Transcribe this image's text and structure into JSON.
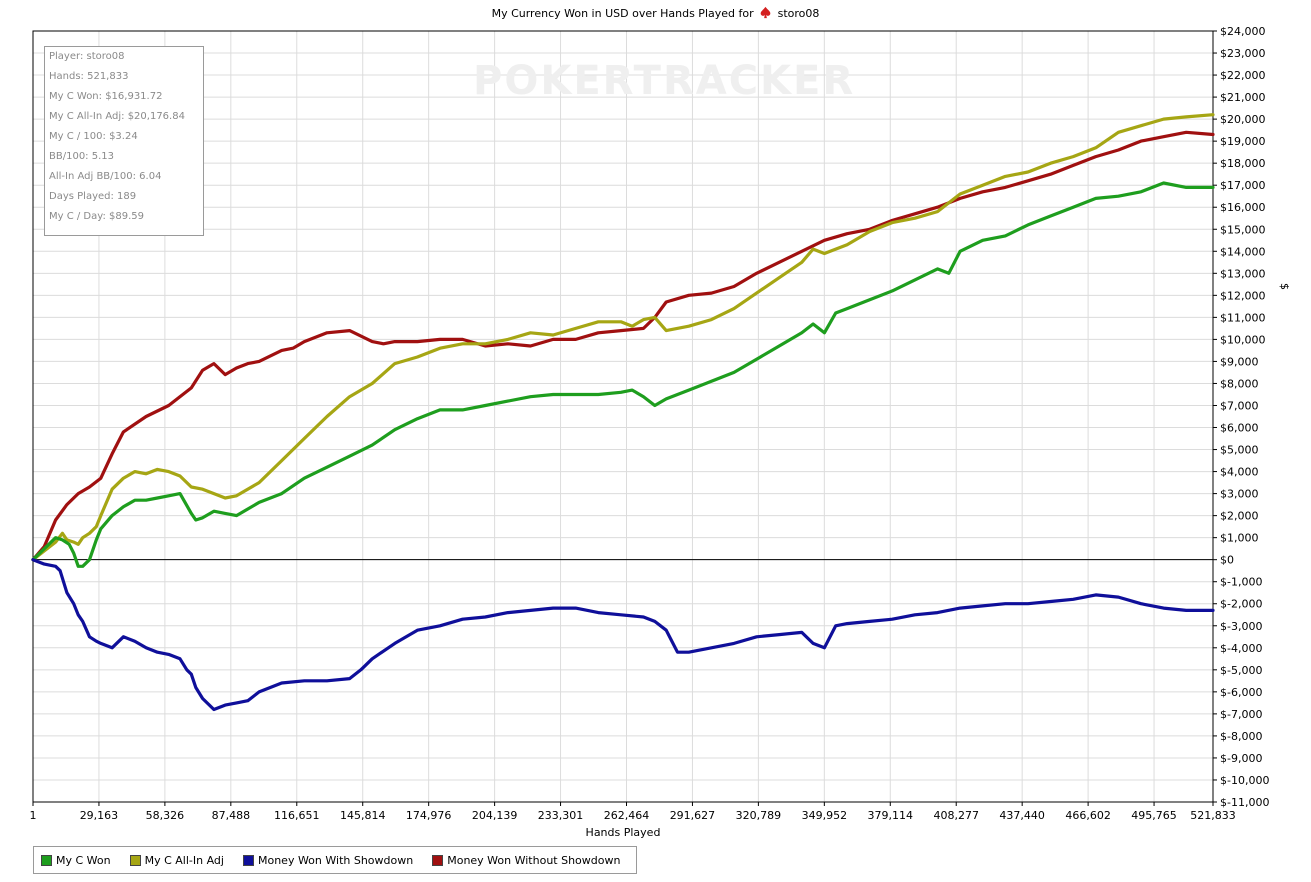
{
  "title_prefix": "My Currency Won in USD over Hands Played for",
  "title_player": "storo08",
  "watermark_left": "POKER",
  "watermark_right": "TRACKER",
  "stats": [
    "Player: storo08",
    "Hands: 521,833",
    "My C Won: $16,931.72",
    "My C All-In Adj: $20,176.84",
    "My C / 100: $3.24",
    "BB/100: 5.13",
    "All-In Adj BB/100: 6.04",
    "Days Played: 189",
    "My C / Day: $89.59"
  ],
  "legend": [
    {
      "label": "My C Won",
      "color": "#1e9e1e"
    },
    {
      "label": "My C All-In Adj",
      "color": "#a6a614"
    },
    {
      "label": "Money Won With Showdown",
      "color": "#0f0f9a"
    },
    {
      "label": "Money Won Without Showdown",
      "color": "#a01010"
    }
  ],
  "chart_data": {
    "type": "line",
    "title": "My Currency Won in USD over Hands Played for storo08",
    "xlabel": "Hands Played",
    "ylabel": "$",
    "xlim": [
      1,
      521833
    ],
    "ylim": [
      -11000,
      24000
    ],
    "x_ticks": [
      1,
      29163,
      58326,
      87488,
      116651,
      145814,
      174976,
      204139,
      233301,
      262464,
      291627,
      320789,
      349952,
      379114,
      408277,
      437440,
      466602,
      495765,
      521833
    ],
    "x_tick_labels": [
      "1",
      "29,163",
      "58,326",
      "87,488",
      "116,651",
      "145,814",
      "174,976",
      "204,139",
      "233,301",
      "262,464",
      "291,627",
      "320,789",
      "349,952",
      "379,114",
      "408,277",
      "437,440",
      "466,602",
      "495,765",
      "521,833"
    ],
    "y_ticks": [
      24000,
      23000,
      22000,
      21000,
      20000,
      19000,
      18000,
      17000,
      16000,
      15000,
      14000,
      13000,
      12000,
      11000,
      10000,
      9000,
      8000,
      7000,
      6000,
      5000,
      4000,
      3000,
      2000,
      1000,
      0,
      -1000,
      -2000,
      -3000,
      -4000,
      -5000,
      -6000,
      -7000,
      -8000,
      -9000,
      -10000,
      -11000
    ],
    "y_tick_labels": [
      "$24,000",
      "$23,000",
      "$22,000",
      "$21,000",
      "$20,000",
      "$19,000",
      "$18,000",
      "$17,000",
      "$16,000",
      "$15,000",
      "$14,000",
      "$13,000",
      "$12,000",
      "$11,000",
      "$10,000",
      "$9,000",
      "$8,000",
      "$7,000",
      "$6,000",
      "$5,000",
      "$4,000",
      "$3,000",
      "$2,000",
      "$1,000",
      "$0",
      "$-1,000",
      "$-2,000",
      "$-3,000",
      "$-4,000",
      "$-5,000",
      "$-6,000",
      "$-7,000",
      "$-8,000",
      "$-9,000",
      "$-10,000",
      "$-11,000"
    ],
    "grid": true,
    "legend_position": "bottom-left",
    "series": [
      {
        "name": "Money Won Without Showdown",
        "color": "#a01010",
        "x": [
          1,
          5000,
          10000,
          15000,
          20000,
          25000,
          30000,
          35000,
          40000,
          50000,
          60000,
          70000,
          75000,
          80000,
          85000,
          90000,
          95000,
          100000,
          110000,
          115000,
          120000,
          130000,
          140000,
          150000,
          155000,
          160000,
          170000,
          180000,
          190000,
          200000,
          210000,
          220000,
          230000,
          240000,
          250000,
          260000,
          270000,
          275000,
          280000,
          290000,
          300000,
          310000,
          320000,
          330000,
          340000,
          350000,
          360000,
          370000,
          380000,
          390000,
          400000,
          410000,
          420000,
          430000,
          440000,
          450000,
          460000,
          470000,
          480000,
          490000,
          500000,
          510000,
          521833
        ],
        "y": [
          0,
          600,
          1800,
          2500,
          3000,
          3300,
          3700,
          4800,
          5800,
          6500,
          7000,
          7800,
          8600,
          8900,
          8400,
          8700,
          8900,
          9000,
          9500,
          9600,
          9900,
          10300,
          10400,
          9900,
          9800,
          9900,
          9900,
          10000,
          10000,
          9700,
          9800,
          9700,
          10000,
          10000,
          10300,
          10400,
          10500,
          11000,
          11700,
          12000,
          12100,
          12400,
          13000,
          13500,
          14000,
          14500,
          14800,
          15000,
          15400,
          15700,
          16000,
          16400,
          16700,
          16900,
          17200,
          17500,
          17900,
          18300,
          18600,
          19000,
          19200,
          19400,
          19300
        ]
      },
      {
        "name": "My C All-In Adj",
        "color": "#a6a614",
        "x": [
          1,
          5000,
          10000,
          13000,
          15000,
          18000,
          20000,
          22000,
          25000,
          28000,
          30000,
          35000,
          40000,
          45000,
          50000,
          55000,
          60000,
          65000,
          70000,
          75000,
          80000,
          85000,
          90000,
          100000,
          110000,
          120000,
          130000,
          140000,
          150000,
          160000,
          170000,
          180000,
          190000,
          200000,
          210000,
          220000,
          230000,
          240000,
          250000,
          260000,
          265000,
          270000,
          275000,
          280000,
          290000,
          300000,
          310000,
          320000,
          330000,
          340000,
          345000,
          350000,
          360000,
          370000,
          380000,
          390000,
          400000,
          410000,
          420000,
          430000,
          440000,
          450000,
          460000,
          470000,
          480000,
          490000,
          500000,
          510000,
          521833
        ],
        "y": [
          0,
          400,
          800,
          1200,
          900,
          800,
          700,
          1000,
          1200,
          1500,
          2000,
          3200,
          3700,
          4000,
          3900,
          4100,
          4000,
          3800,
          3300,
          3200,
          3000,
          2800,
          2900,
          3500,
          4500,
          5500,
          6500,
          7400,
          8000,
          8900,
          9200,
          9600,
          9800,
          9800,
          10000,
          10300,
          10200,
          10500,
          10800,
          10800,
          10600,
          10900,
          11000,
          10400,
          10600,
          10900,
          11400,
          12100,
          12800,
          13500,
          14100,
          13900,
          14300,
          14900,
          15300,
          15500,
          15800,
          16600,
          17000,
          17400,
          17600,
          18000,
          18300,
          18700,
          19400,
          19700,
          20000,
          20100,
          20200
        ]
      },
      {
        "name": "My C Won",
        "color": "#1e9e1e",
        "x": [
          1,
          5000,
          10000,
          13000,
          16000,
          18000,
          20000,
          22000,
          25000,
          28000,
          30000,
          35000,
          40000,
          45000,
          50000,
          55000,
          60000,
          65000,
          70000,
          72000,
          75000,
          80000,
          85000,
          90000,
          100000,
          110000,
          120000,
          130000,
          140000,
          150000,
          160000,
          170000,
          180000,
          190000,
          200000,
          210000,
          220000,
          230000,
          240000,
          250000,
          260000,
          265000,
          270000,
          275000,
          280000,
          290000,
          300000,
          310000,
          320000,
          330000,
          340000,
          345000,
          350000,
          355000,
          360000,
          370000,
          380000,
          390000,
          400000,
          405000,
          410000,
          420000,
          430000,
          440000,
          450000,
          460000,
          470000,
          480000,
          490000,
          500000,
          510000,
          521833
        ],
        "y": [
          0,
          500,
          1000,
          900,
          700,
          300,
          -300,
          -300,
          0,
          900,
          1400,
          2000,
          2400,
          2700,
          2700,
          2800,
          2900,
          3000,
          2100,
          1800,
          1900,
          2200,
          2100,
          2000,
          2600,
          3000,
          3700,
          4200,
          4700,
          5200,
          5900,
          6400,
          6800,
          6800,
          7000,
          7200,
          7400,
          7500,
          7500,
          7500,
          7600,
          7700,
          7400,
          7000,
          7300,
          7700,
          8100,
          8500,
          9100,
          9700,
          10300,
          10700,
          10300,
          11200,
          11400,
          11800,
          12200,
          12700,
          13200,
          13000,
          14000,
          14500,
          14700,
          15200,
          15600,
          16000,
          16400,
          16500,
          16700,
          17100,
          16900,
          16900
        ]
      },
      {
        "name": "Money Won With Showdown",
        "color": "#0f0f9a",
        "x": [
          1,
          5000,
          10000,
          12000,
          15000,
          18000,
          20000,
          22000,
          25000,
          28000,
          30000,
          35000,
          40000,
          45000,
          50000,
          55000,
          60000,
          65000,
          68000,
          70000,
          72000,
          75000,
          80000,
          85000,
          90000,
          95000,
          100000,
          110000,
          120000,
          130000,
          140000,
          145000,
          150000,
          160000,
          170000,
          180000,
          190000,
          200000,
          210000,
          220000,
          230000,
          240000,
          250000,
          260000,
          270000,
          275000,
          280000,
          285000,
          290000,
          300000,
          310000,
          320000,
          330000,
          340000,
          345000,
          350000,
          355000,
          360000,
          370000,
          380000,
          390000,
          400000,
          410000,
          420000,
          430000,
          440000,
          450000,
          460000,
          470000,
          480000,
          490000,
          500000,
          510000,
          521833
        ],
        "y": [
          0,
          -200,
          -300,
          -500,
          -1500,
          -2000,
          -2500,
          -2800,
          -3500,
          -3700,
          -3800,
          -4000,
          -3500,
          -3700,
          -4000,
          -4200,
          -4300,
          -4500,
          -5000,
          -5200,
          -5800,
          -6300,
          -6800,
          -6600,
          -6500,
          -6400,
          -6000,
          -5600,
          -5500,
          -5500,
          -5400,
          -5000,
          -4500,
          -3800,
          -3200,
          -3000,
          -2700,
          -2600,
          -2400,
          -2300,
          -2200,
          -2200,
          -2400,
          -2500,
          -2600,
          -2800,
          -3200,
          -4200,
          -4200,
          -4000,
          -3800,
          -3500,
          -3400,
          -3300,
          -3800,
          -4000,
          -3000,
          -2900,
          -2800,
          -2700,
          -2500,
          -2400,
          -2200,
          -2100,
          -2000,
          -2000,
          -1900,
          -1800,
          -1600,
          -1700,
          -2000,
          -2200,
          -2300,
          -2300
        ]
      }
    ]
  }
}
